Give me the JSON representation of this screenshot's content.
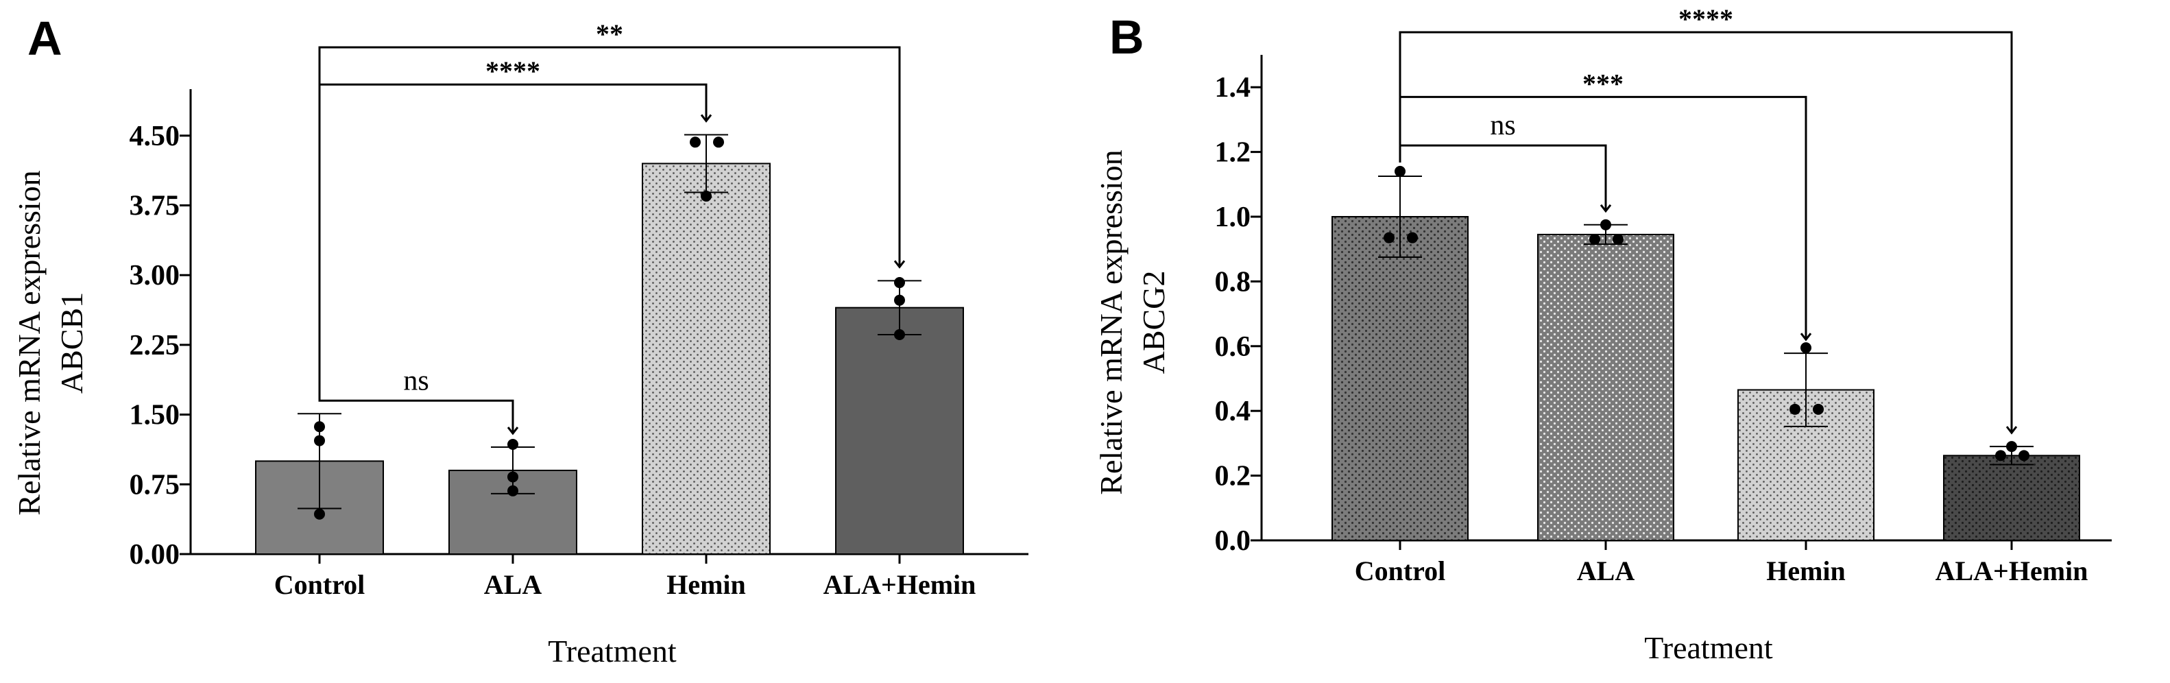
{
  "chart_data": [
    {
      "panel_label": "A",
      "type": "bar",
      "title": "",
      "xlabel": "Treatment",
      "ylabel": "Relative mRNA expression",
      "ylabel2": "ABCB1",
      "ylim": [
        0,
        5.0
      ],
      "yticks": [
        0,
        0.75,
        1.5,
        2.25,
        3.0,
        3.75,
        4.5
      ],
      "ytick_labels": [
        "0.00",
        "0.75",
        "1.50",
        "2.25",
        "3.00",
        "3.75",
        "4.50"
      ],
      "categories": [
        "Control",
        "ALA",
        "Hemin",
        "ALA+Hemin"
      ],
      "values": [
        1.0,
        0.9,
        4.2,
        2.65
      ],
      "errors": [
        0.51,
        0.25,
        0.31,
        0.29
      ],
      "points": [
        [
          1.37,
          1.22,
          0.43
        ],
        [
          1.18,
          0.83,
          0.68
        ],
        [
          4.43,
          4.43,
          3.85
        ],
        [
          2.92,
          2.73,
          2.36
        ]
      ],
      "bar_colors": [
        "#808080",
        "#7a7a7a",
        "#cfcfcf",
        "#5f5f5f"
      ],
      "bar_patterns": [
        "none",
        "none",
        "dots",
        "none"
      ],
      "comparisons": [
        {
          "from": 0,
          "to": 1,
          "label": "ns",
          "y_data": 1.65
        },
        {
          "from": 0,
          "to": 2,
          "label": "****",
          "y_data": 5.05
        },
        {
          "from": 0,
          "to": 3,
          "label": "**",
          "y_data": 5.45
        }
      ]
    },
    {
      "panel_label": "B",
      "type": "bar",
      "title": "",
      "xlabel": "Treatment",
      "ylabel": "Relative mRNA expression",
      "ylabel2": "ABCG2",
      "ylim": [
        0,
        1.5
      ],
      "yticks": [
        0,
        0.2,
        0.4,
        0.6,
        0.8,
        1.0,
        1.2,
        1.4
      ],
      "ytick_labels": [
        "0.0",
        "0.2",
        "0.4",
        "0.6",
        "0.8",
        "1.0",
        "1.2",
        "1.4"
      ],
      "categories": [
        "Control",
        "ALA",
        "Hemin",
        "ALA+Hemin"
      ],
      "values": [
        1.0,
        0.945,
        0.465,
        0.262
      ],
      "errors": [
        0.125,
        0.03,
        0.113,
        0.028
      ],
      "points": [
        [
          1.14,
          0.935,
          0.935
        ],
        [
          0.975,
          0.93,
          0.93
        ],
        [
          0.595,
          0.405,
          0.405
        ],
        [
          0.29,
          0.262,
          0.262
        ]
      ],
      "bar_colors": [
        "#808080",
        "#7a7a7a",
        "#cfcfcf",
        "#4c4c4c"
      ],
      "bar_patterns": [
        "dots-dark",
        "dots-white",
        "dots",
        "dots-dark"
      ],
      "comparisons": [
        {
          "from": 0,
          "to": 1,
          "label": "ns",
          "y_data": 1.22
        },
        {
          "from": 0,
          "to": 2,
          "label": "***",
          "y_data": 1.37
        },
        {
          "from": 0,
          "to": 3,
          "label": "****",
          "y_data": 1.57
        }
      ]
    }
  ]
}
